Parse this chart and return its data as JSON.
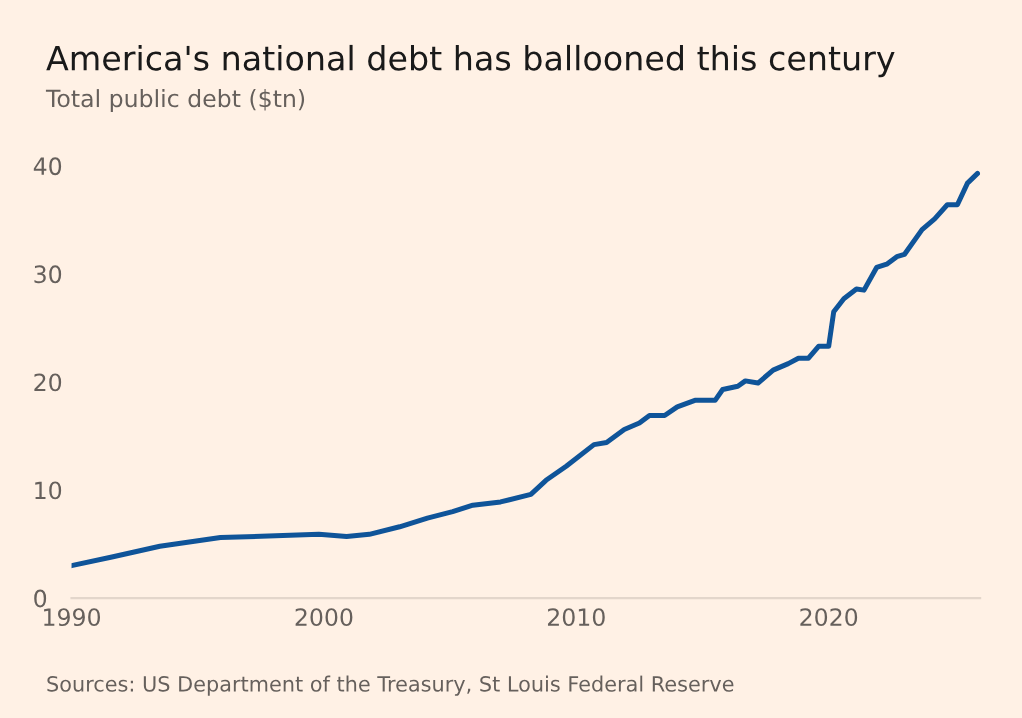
{
  "chart_data": {
    "type": "line",
    "title": "America's national debt has ballooned this century",
    "subtitle": "Total public debt ($tn)",
    "annotations": [
      "Sources: US Department of the Treasury, St Louis Federal Reserve"
    ],
    "x": [
      1990.0,
      1991.6,
      1993.5,
      1995.9,
      1999.8,
      2000.9,
      2001.8,
      2003.0,
      2004.1,
      2005.1,
      2005.9,
      2007.0,
      2008.2,
      2008.8,
      2009.6,
      2010.7,
      2011.2,
      2011.9,
      2012.5,
      2012.9,
      2013.5,
      2014.0,
      2014.7,
      2015.5,
      2015.8,
      2016.4,
      2016.7,
      2017.2,
      2017.8,
      2018.4,
      2018.8,
      2019.2,
      2019.6,
      2020.0,
      2020.2,
      2020.6,
      2021.1,
      2021.4,
      2021.9,
      2022.3,
      2022.7,
      2023.0,
      2023.7,
      2024.2,
      2024.7,
      2025.1,
      2025.5,
      2025.9
    ],
    "series": [
      {
        "color": "#0f5499",
        "values": [
          3.0,
          3.8,
          4.8,
          5.6,
          5.9,
          5.7,
          5.9,
          6.6,
          7.4,
          8.0,
          8.6,
          8.9,
          9.6,
          10.9,
          12.2,
          14.2,
          14.4,
          15.6,
          16.2,
          16.9,
          16.9,
          17.7,
          18.3,
          18.3,
          19.3,
          19.6,
          20.1,
          19.9,
          21.1,
          21.7,
          22.2,
          22.2,
          23.3,
          23.3,
          26.5,
          27.7,
          28.6,
          28.5,
          30.6,
          30.9,
          31.6,
          31.8,
          34.1,
          35.1,
          36.4,
          36.4,
          38.4,
          39.3
        ]
      }
    ],
    "xlim": [
      1990,
      2026
    ],
    "xticks": [
      1990,
      2000,
      2010,
      2020
    ],
    "ylim": [
      0,
      40
    ],
    "yticks": [
      0,
      10,
      20,
      30,
      40
    ],
    "grid": false,
    "legend": false,
    "marker": "none",
    "line_style": "solid"
  }
}
